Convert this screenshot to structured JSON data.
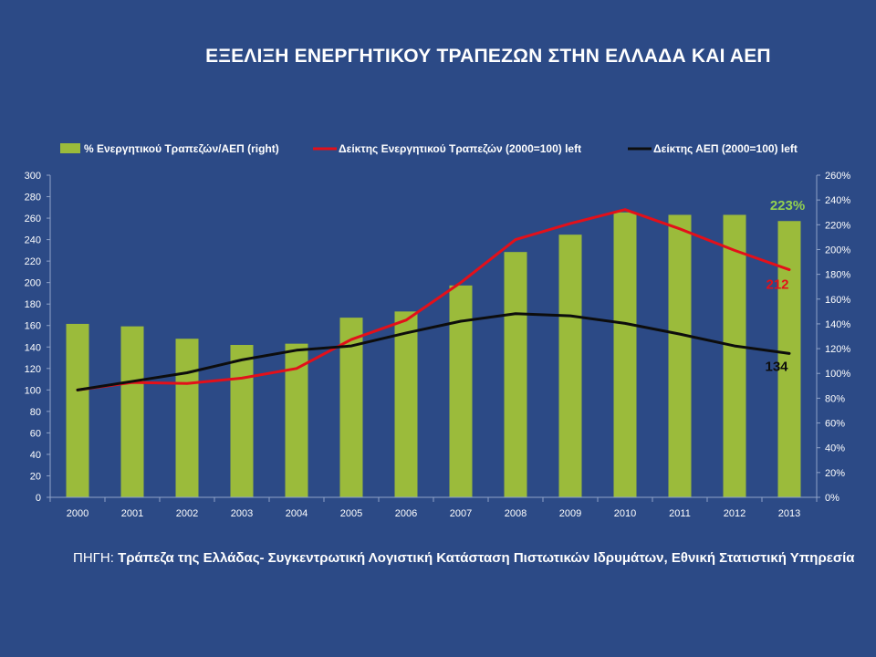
{
  "title": "ΕΞΕΛΙΞΗ ΕΝΕΡΓΗΤΙΚΟΥ ΤΡΑΠΕΖΩΝ ΣΤΗΝ ΕΛΛΑΔΑ ΚΑΙ ΑΕΠ",
  "source": {
    "label": "ΠΗΓΗ:",
    "text": "Τράπεζα της Ελλάδας- Συγκεντρωτική Λογιστική Κατάσταση Πιστωτικών Ιδρυμάτων, Εθνική Στατιστική Υπηρεσία"
  },
  "colors": {
    "background": "#2c4a86",
    "bars": "#9bbb3b",
    "bank_index": "#e3101a",
    "gdp_index": "#0d0d0d",
    "bar_callout": "#92d050"
  },
  "chart_data": {
    "type": "bar",
    "categories": [
      "2000",
      "2001",
      "2002",
      "2003",
      "2004",
      "2005",
      "2006",
      "2007",
      "2008",
      "2009",
      "2010",
      "2011",
      "2012",
      "2013"
    ],
    "series": [
      {
        "name": "% Ενεργητικού Τραπεζών/ΑΕΠ (right)",
        "type": "bar",
        "axis": "right",
        "values": [
          140,
          138,
          128,
          123,
          124,
          145,
          150,
          171,
          198,
          212,
          230,
          228,
          228,
          223
        ]
      },
      {
        "name": "Δείκτης Ενεργητικού Τραπεζών (2000=100) left",
        "type": "line",
        "axis": "left",
        "values": [
          100,
          107,
          106,
          111,
          120,
          147,
          165,
          200,
          240,
          255,
          268,
          250,
          230,
          212
        ]
      },
      {
        "name": "Δείκτης ΑΕΠ (2000=100) left",
        "type": "line",
        "axis": "left",
        "values": [
          100,
          108,
          116,
          128,
          137,
          141,
          153,
          164,
          171,
          169,
          162,
          152,
          141,
          134
        ]
      }
    ],
    "left_axis": {
      "range": [
        0,
        300
      ],
      "ticks": [
        "0",
        "20",
        "40",
        "60",
        "80",
        "100",
        "120",
        "140",
        "160",
        "180",
        "200",
        "220",
        "240",
        "260",
        "280",
        "300"
      ]
    },
    "right_axis": {
      "range": [
        0,
        260
      ],
      "ticks": [
        "0%",
        "20%",
        "40%",
        "60%",
        "80%",
        "100%",
        "120%",
        "140%",
        "160%",
        "180%",
        "200%",
        "220%",
        "240%",
        "260%"
      ]
    },
    "annotations": [
      {
        "text": "223%",
        "series": 0,
        "index": 13
      },
      {
        "text": "212",
        "series": 1,
        "index": 13
      },
      {
        "text": "134",
        "series": 2,
        "index": 13
      }
    ],
    "legend_position": "top",
    "grid": false
  }
}
